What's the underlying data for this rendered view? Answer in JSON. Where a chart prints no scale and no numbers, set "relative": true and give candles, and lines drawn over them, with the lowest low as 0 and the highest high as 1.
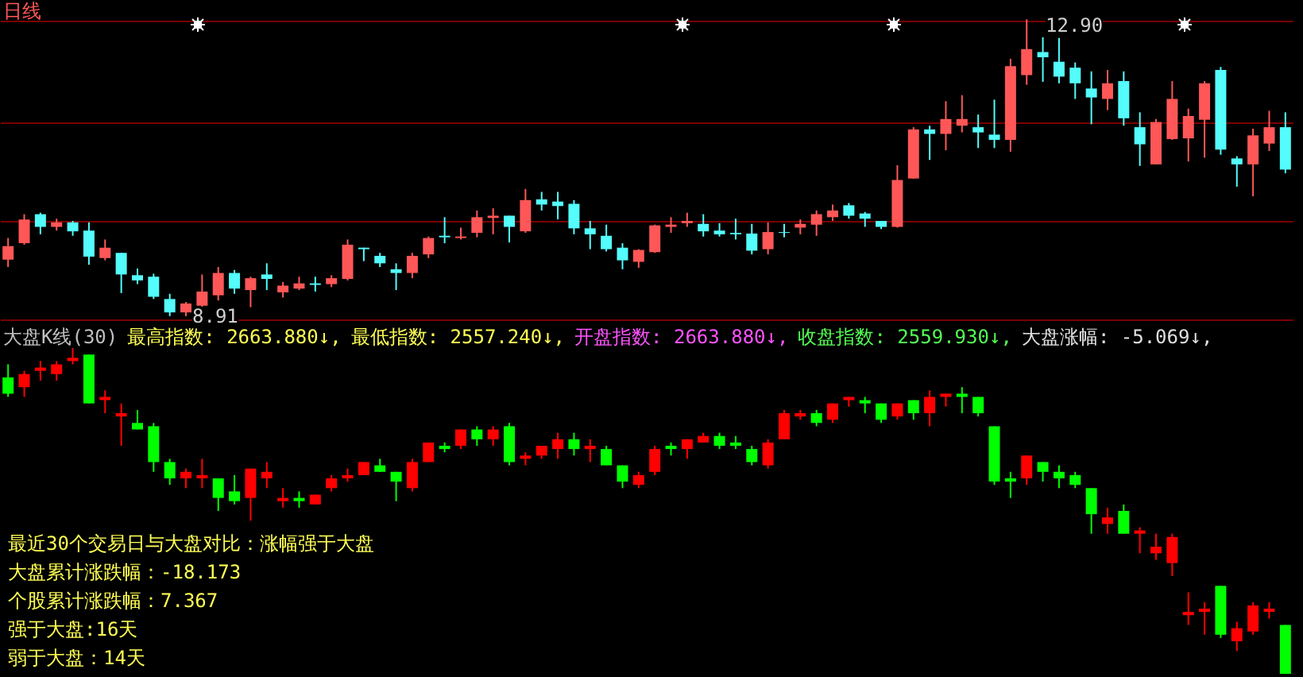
{
  "chart_data": [
    {
      "type": "candlestick",
      "title": "日线",
      "categories": [
        null,
        null,
        null,
        null,
        null,
        null,
        null,
        null,
        null,
        null,
        null,
        null,
        null,
        null,
        null,
        null,
        null,
        null,
        null,
        null,
        null,
        null,
        null,
        null,
        null,
        null,
        null,
        null,
        null,
        null,
        null,
        null,
        null,
        null,
        null,
        null,
        null,
        null,
        null,
        null,
        null,
        null,
        null,
        null,
        null,
        null,
        null,
        null,
        null,
        null,
        null,
        null,
        null,
        null,
        null,
        null,
        null,
        null,
        null,
        null,
        null,
        null,
        null,
        null,
        null,
        null,
        null,
        null,
        null,
        null,
        null,
        null,
        null,
        null,
        null,
        null,
        null,
        null,
        null,
        null
      ],
      "ohlc": [
        [
          9.67,
          9.96,
          9.57,
          9.85
        ],
        [
          9.89,
          10.28,
          9.87,
          10.21
        ],
        [
          10.28,
          10.3,
          10.01,
          10.11
        ],
        [
          10.11,
          10.22,
          10.06,
          10.17
        ],
        [
          10.17,
          10.19,
          9.99,
          10.05
        ],
        [
          10.06,
          10.17,
          9.6,
          9.71
        ],
        [
          9.69,
          9.94,
          9.66,
          9.83
        ],
        [
          9.76,
          9.76,
          9.22,
          9.47
        ],
        [
          9.46,
          9.55,
          9.34,
          9.39
        ],
        [
          9.44,
          9.48,
          9.14,
          9.17
        ],
        [
          9.14,
          9.21,
          8.91,
          8.96
        ],
        [
          8.96,
          9.1,
          8.91,
          9.08
        ],
        [
          9.05,
          9.47,
          9.0,
          9.24
        ],
        [
          9.19,
          9.57,
          9.12,
          9.49
        ],
        [
          9.49,
          9.53,
          9.21,
          9.28
        ],
        [
          9.26,
          9.44,
          9.03,
          9.42
        ],
        [
          9.47,
          9.62,
          9.26,
          9.41
        ],
        [
          9.23,
          9.37,
          9.16,
          9.32
        ],
        [
          9.28,
          9.44,
          9.26,
          9.35
        ],
        [
          9.35,
          9.44,
          9.24,
          9.33
        ],
        [
          9.34,
          9.46,
          9.3,
          9.42
        ],
        [
          9.41,
          9.94,
          9.39,
          9.87
        ],
        [
          9.83,
          9.83,
          9.65,
          9.81
        ],
        [
          9.72,
          9.76,
          9.57,
          9.62
        ],
        [
          9.54,
          9.62,
          9.26,
          9.49
        ],
        [
          9.49,
          9.76,
          9.42,
          9.72
        ],
        [
          9.74,
          9.98,
          9.69,
          9.96
        ],
        [
          9.99,
          10.24,
          9.89,
          9.97
        ],
        [
          9.96,
          10.1,
          9.94,
          9.98
        ],
        [
          10.03,
          10.33,
          9.97,
          10.24
        ],
        [
          10.23,
          10.36,
          10.01,
          10.26
        ],
        [
          10.26,
          10.26,
          9.9,
          10.11
        ],
        [
          10.05,
          10.62,
          10.03,
          10.47
        ],
        [
          10.48,
          10.58,
          10.33,
          10.41
        ],
        [
          10.45,
          10.58,
          10.21,
          10.39
        ],
        [
          10.42,
          10.47,
          10.01,
          10.09
        ],
        [
          10.09,
          10.19,
          9.81,
          10.01
        ],
        [
          9.99,
          10.14,
          9.78,
          9.81
        ],
        [
          9.83,
          9.89,
          9.54,
          9.66
        ],
        [
          9.64,
          9.81,
          9.56,
          9.8
        ],
        [
          9.77,
          10.14,
          9.76,
          10.13
        ],
        [
          10.11,
          10.24,
          10.03,
          10.14
        ],
        [
          10.16,
          10.3,
          10.11,
          10.19
        ],
        [
          10.15,
          10.28,
          9.98,
          10.05
        ],
        [
          10.06,
          10.16,
          9.98,
          10.01
        ],
        [
          10.03,
          10.22,
          9.94,
          10.01
        ],
        [
          10.02,
          10.15,
          9.74,
          9.79
        ],
        [
          9.81,
          10.17,
          9.74,
          10.04
        ],
        [
          10.04,
          10.15,
          9.97,
          10.03
        ],
        [
          10.1,
          10.21,
          10.01,
          10.15
        ],
        [
          10.14,
          10.33,
          9.99,
          10.28
        ],
        [
          10.24,
          10.41,
          10.19,
          10.33
        ],
        [
          10.4,
          10.43,
          10.22,
          10.26
        ],
        [
          10.29,
          10.31,
          10.11,
          10.22
        ],
        [
          10.19,
          10.19,
          10.08,
          10.11
        ],
        [
          10.11,
          10.94,
          10.1,
          10.74
        ],
        [
          10.76,
          11.45,
          10.76,
          11.42
        ],
        [
          11.42,
          11.47,
          11.01,
          11.36
        ],
        [
          11.36,
          11.8,
          11.14,
          11.56
        ],
        [
          11.47,
          11.88,
          11.38,
          11.56
        ],
        [
          11.45,
          11.62,
          11.17,
          11.38
        ],
        [
          11.35,
          11.82,
          11.17,
          11.28
        ],
        [
          11.28,
          12.37,
          11.12,
          12.27
        ],
        [
          12.15,
          12.9,
          12.02,
          12.5
        ],
        [
          12.46,
          12.66,
          12.06,
          12.39
        ],
        [
          12.33,
          12.65,
          12.04,
          12.13
        ],
        [
          12.25,
          12.32,
          11.83,
          12.04
        ],
        [
          11.97,
          12.2,
          11.49,
          11.85
        ],
        [
          11.83,
          12.22,
          11.68,
          12.04
        ],
        [
          12.07,
          12.2,
          11.47,
          11.57
        ],
        [
          11.45,
          11.65,
          10.93,
          11.22
        ],
        [
          10.95,
          11.56,
          10.95,
          11.52
        ],
        [
          11.29,
          12.07,
          11.28,
          11.83
        ],
        [
          11.3,
          11.7,
          10.99,
          11.6
        ],
        [
          11.55,
          12.07,
          11.04,
          12.04
        ],
        [
          12.22,
          12.26,
          11.08,
          11.15
        ],
        [
          11.03,
          11.06,
          10.65,
          10.95
        ],
        [
          10.95,
          11.43,
          10.52,
          11.34
        ],
        [
          11.23,
          11.67,
          11.13,
          11.45
        ],
        [
          11.45,
          11.65,
          10.83,
          10.88
        ]
      ],
      "colors": [
        "#ff5757",
        "#ff5757",
        "#54fcfc",
        "#ff5757",
        "#54fcfc",
        "#54fcfc",
        "#ff5757",
        "#54fcfc",
        "#54fcfc",
        "#54fcfc",
        "#54fcfc",
        "#ff5757",
        "#ff5757",
        "#ff5757",
        "#54fcfc",
        "#ff5757",
        "#54fcfc",
        "#ff5757",
        "#ff5757",
        "#54fcfc",
        "#ff5757",
        "#ff5757",
        "#54fcfc",
        "#54fcfc",
        "#54fcfc",
        "#ff5757",
        "#ff5757",
        "#54fcfc",
        "#ff5757",
        "#ff5757",
        "#ff5757",
        "#54fcfc",
        "#ff5757",
        "#54fcfc",
        "#54fcfc",
        "#54fcfc",
        "#54fcfc",
        "#54fcfc",
        "#54fcfc",
        "#ff5757",
        "#ff5757",
        "#ff5757",
        "#ff5757",
        "#54fcfc",
        "#54fcfc",
        "#54fcfc",
        "#54fcfc",
        "#ff5757",
        "#54fcfc",
        "#ff5757",
        "#ff5757",
        "#ff5757",
        "#54fcfc",
        "#54fcfc",
        "#54fcfc",
        "#ff5757",
        "#ff5757",
        "#54fcfc",
        "#ff5757",
        "#ff5757",
        "#54fcfc",
        "#54fcfc",
        "#ff5757",
        "#ff5757",
        "#54fcfc",
        "#54fcfc",
        "#54fcfc",
        "#54fcfc",
        "#ff5757",
        "#54fcfc",
        "#54fcfc",
        "#ff5757",
        "#ff5757",
        "#ff5757",
        "#ff5757",
        "#54fcfc",
        "#54fcfc",
        "#ff5757",
        "#ff5757",
        "#54fcfc"
      ],
      "ylim": [
        8.78,
        13.16
      ],
      "yticks": [
        {
          "value": 12.88,
          "label": null
        },
        {
          "value": 11.52,
          "label": null
        },
        {
          "value": 10.2,
          "label": null
        },
        {
          "value": 8.87,
          "label": null
        }
      ],
      "grid": true,
      "annotations": [
        "12.90",
        "8.91"
      ]
    },
    {
      "type": "candlestick",
      "title": "大盘K线(30)",
      "relative": true,
      "categories": [
        null,
        null,
        null,
        null,
        null,
        null,
        null,
        null,
        null,
        null,
        null,
        null,
        null,
        null,
        null,
        null,
        null,
        null,
        null,
        null,
        null,
        null,
        null,
        null,
        null,
        null,
        null,
        null,
        null,
        null,
        null,
        null,
        null,
        null,
        null,
        null,
        null,
        null,
        null,
        null,
        null,
        null,
        null,
        null,
        null,
        null,
        null,
        null,
        null,
        null,
        null,
        null,
        null,
        null,
        null,
        null,
        null,
        null,
        null,
        null,
        null,
        null,
        null,
        null,
        null,
        null,
        null,
        null,
        null,
        null,
        null,
        null,
        null,
        null,
        null,
        null,
        null,
        null,
        null,
        null
      ],
      "ohlc": [
        [
          0.91,
          0.95,
          0.85,
          0.86
        ],
        [
          0.88,
          0.93,
          0.85,
          0.92
        ],
        [
          0.93,
          0.96,
          0.9,
          0.94
        ],
        [
          0.92,
          0.96,
          0.9,
          0.95
        ],
        [
          0.96,
          1,
          0.95,
          0.97
        ],
        [
          0.98,
          0.98,
          0.83,
          0.83
        ],
        [
          0.84,
          0.87,
          0.8,
          0.85
        ],
        [
          0.79,
          0.83,
          0.7,
          0.8
        ],
        [
          0.77,
          0.81,
          0.75,
          0.75
        ],
        [
          0.76,
          0.77,
          0.62,
          0.65
        ],
        [
          0.65,
          0.66,
          0.58,
          0.6
        ],
        [
          0.6,
          0.63,
          0.57,
          0.62
        ],
        [
          0.6,
          0.66,
          0.57,
          0.61
        ],
        [
          0.6,
          0.6,
          0.5,
          0.54
        ],
        [
          0.56,
          0.61,
          0.52,
          0.53
        ],
        [
          0.54,
          0.63,
          0.47,
          0.63
        ],
        [
          0.6,
          0.65,
          0.57,
          0.62
        ],
        [
          0.53,
          0.57,
          0.51,
          0.54
        ],
        [
          0.54,
          0.56,
          0.51,
          0.53
        ],
        [
          0.52,
          0.55,
          0.52,
          0.55
        ],
        [
          0.57,
          0.61,
          0.56,
          0.6
        ],
        [
          0.6,
          0.63,
          0.59,
          0.61
        ],
        [
          0.61,
          0.65,
          0.61,
          0.65
        ],
        [
          0.64,
          0.66,
          0.62,
          0.62
        ],
        [
          0.62,
          0.62,
          0.53,
          0.59
        ],
        [
          0.57,
          0.66,
          0.56,
          0.65
        ],
        [
          0.65,
          0.71,
          0.65,
          0.71
        ],
        [
          0.7,
          0.71,
          0.68,
          0.69
        ],
        [
          0.7,
          0.75,
          0.69,
          0.75
        ],
        [
          0.75,
          0.76,
          0.7,
          0.72
        ],
        [
          0.72,
          0.76,
          0.7,
          0.75
        ],
        [
          0.76,
          0.77,
          0.64,
          0.65
        ],
        [
          0.66,
          0.68,
          0.64,
          0.67
        ],
        [
          0.67,
          0.7,
          0.66,
          0.7
        ],
        [
          0.69,
          0.74,
          0.66,
          0.72
        ],
        [
          0.72,
          0.74,
          0.67,
          0.69
        ],
        [
          0.69,
          0.72,
          0.65,
          0.7
        ],
        [
          0.69,
          0.7,
          0.64,
          0.64
        ],
        [
          0.64,
          0.64,
          0.57,
          0.59
        ],
        [
          0.58,
          0.62,
          0.57,
          0.61
        ],
        [
          0.62,
          0.7,
          0.61,
          0.69
        ],
        [
          0.7,
          0.71,
          0.67,
          0.69
        ],
        [
          0.69,
          0.72,
          0.66,
          0.72
        ],
        [
          0.71,
          0.74,
          0.71,
          0.73
        ],
        [
          0.73,
          0.74,
          0.69,
          0.7
        ],
        [
          0.71,
          0.73,
          0.69,
          0.7
        ],
        [
          0.69,
          0.7,
          0.64,
          0.65
        ],
        [
          0.64,
          0.72,
          0.63,
          0.71
        ],
        [
          0.72,
          0.81,
          0.72,
          0.8
        ],
        [
          0.79,
          0.81,
          0.78,
          0.8
        ],
        [
          0.8,
          0.81,
          0.76,
          0.77
        ],
        [
          0.78,
          0.83,
          0.77,
          0.83
        ],
        [
          0.84,
          0.85,
          0.82,
          0.85
        ],
        [
          0.84,
          0.85,
          0.8,
          0.83
        ],
        [
          0.83,
          0.83,
          0.77,
          0.78
        ],
        [
          0.79,
          0.83,
          0.78,
          0.83
        ],
        [
          0.84,
          0.84,
          0.78,
          0.8
        ],
        [
          0.8,
          0.87,
          0.76,
          0.85
        ],
        [
          0.85,
          0.86,
          0.82,
          0.86
        ],
        [
          0.86,
          0.88,
          0.8,
          0.85
        ],
        [
          0.85,
          0.85,
          0.79,
          0.8
        ],
        [
          0.76,
          0.76,
          0.58,
          0.59
        ],
        [
          0.6,
          0.62,
          0.54,
          0.59
        ],
        [
          0.6,
          0.67,
          0.58,
          0.67
        ],
        [
          0.65,
          0.65,
          0.59,
          0.62
        ],
        [
          0.62,
          0.64,
          0.57,
          0.6
        ],
        [
          0.61,
          0.62,
          0.57,
          0.58
        ],
        [
          0.57,
          0.57,
          0.43,
          0.49
        ],
        [
          0.46,
          0.51,
          0.43,
          0.48
        ],
        [
          0.5,
          0.52,
          0.43,
          0.43
        ],
        [
          0.43,
          0.45,
          0.37,
          0.44
        ],
        [
          0.37,
          0.43,
          0.35,
          0.39
        ],
        [
          0.34,
          0.43,
          0.3,
          0.42
        ],
        [
          0.18,
          0.25,
          0.15,
          0.19
        ],
        [
          0.19,
          0.22,
          0.12,
          0.2
        ],
        [
          0.27,
          0.27,
          0.11,
          0.12
        ],
        [
          0.1,
          0.16,
          0.07,
          0.14
        ],
        [
          0.13,
          0.22,
          0.12,
          0.21
        ],
        [
          0.19,
          0.22,
          0.17,
          0.2
        ],
        [
          0.15,
          0.15,
          0,
          0
        ]
      ],
      "colors": [
        "#00ff00",
        "#ff0000",
        "#ff0000",
        "#ff0000",
        "#ff0000",
        "#00ff00",
        "#ff0000",
        "#ff0000",
        "#00ff00",
        "#00ff00",
        "#00ff00",
        "#ff0000",
        "#ff0000",
        "#00ff00",
        "#00ff00",
        "#ff0000",
        "#ff0000",
        "#ff0000",
        "#00ff00",
        "#ff0000",
        "#ff0000",
        "#ff0000",
        "#ff0000",
        "#00ff00",
        "#00ff00",
        "#ff0000",
        "#ff0000",
        "#00ff00",
        "#ff0000",
        "#00ff00",
        "#ff0000",
        "#00ff00",
        "#ff0000",
        "#ff0000",
        "#ff0000",
        "#00ff00",
        "#ff0000",
        "#00ff00",
        "#00ff00",
        "#ff0000",
        "#ff0000",
        "#00ff00",
        "#ff0000",
        "#ff0000",
        "#00ff00",
        "#00ff00",
        "#00ff00",
        "#ff0000",
        "#ff0000",
        "#ff0000",
        "#00ff00",
        "#ff0000",
        "#ff0000",
        "#00ff00",
        "#00ff00",
        "#ff0000",
        "#00ff00",
        "#ff0000",
        "#ff0000",
        "#00ff00",
        "#00ff00",
        "#00ff00",
        "#00ff00",
        "#ff0000",
        "#00ff00",
        "#00ff00",
        "#00ff00",
        "#00ff00",
        "#ff0000",
        "#00ff00",
        "#ff0000",
        "#ff0000",
        "#ff0000",
        "#ff0000",
        "#ff0000",
        "#00ff00",
        "#ff0000",
        "#ff0000",
        "#ff0000",
        "#00ff00"
      ],
      "annotations": [
        "最高指数: 2663.880↓,",
        "最低指数: 2557.240↓,",
        "开盘指数: 2663.880↓,",
        "收盘指数: 2559.930↓,",
        "大盘涨幅: -5.069↓,",
        "最近30个交易日与大盘对比：涨幅强于大盘",
        "大盘累计涨跌幅：-18.173",
        "个股累计涨跌幅：7.367",
        "强于大盘:16天",
        "弱于大盘：14天"
      ]
    }
  ]
}
